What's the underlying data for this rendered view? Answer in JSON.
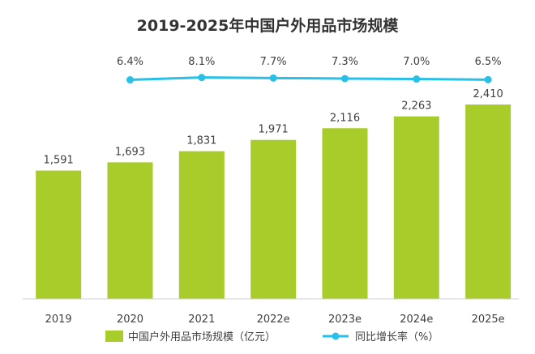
{
  "chart_data": {
    "type": "bar",
    "title": "2019-2025年中国户外用品市场规模",
    "categories": [
      "2019",
      "2020",
      "2021",
      "2022e",
      "2023e",
      "2024e",
      "2025e"
    ],
    "series": [
      {
        "name": "中国户外用品市场规模（亿元）",
        "type": "bar",
        "values": [
          1591,
          1693,
          1831,
          1971,
          2116,
          2263,
          2410
        ],
        "value_labels": [
          "1,591",
          "1,693",
          "1,831",
          "1,971",
          "2,116",
          "2,263",
          "2,410"
        ],
        "color": "#a8cc2a"
      },
      {
        "name": "同比增长率（%）",
        "type": "line",
        "values": [
          null,
          6.4,
          8.1,
          7.7,
          7.3,
          7.0,
          6.5
        ],
        "value_labels": [
          "",
          "6.4%",
          "8.1%",
          "7.7%",
          "7.3%",
          "7.0%",
          "6.5%"
        ],
        "color": "#29c0e8"
      }
    ],
    "legend_position": "bottom",
    "grid": false
  }
}
